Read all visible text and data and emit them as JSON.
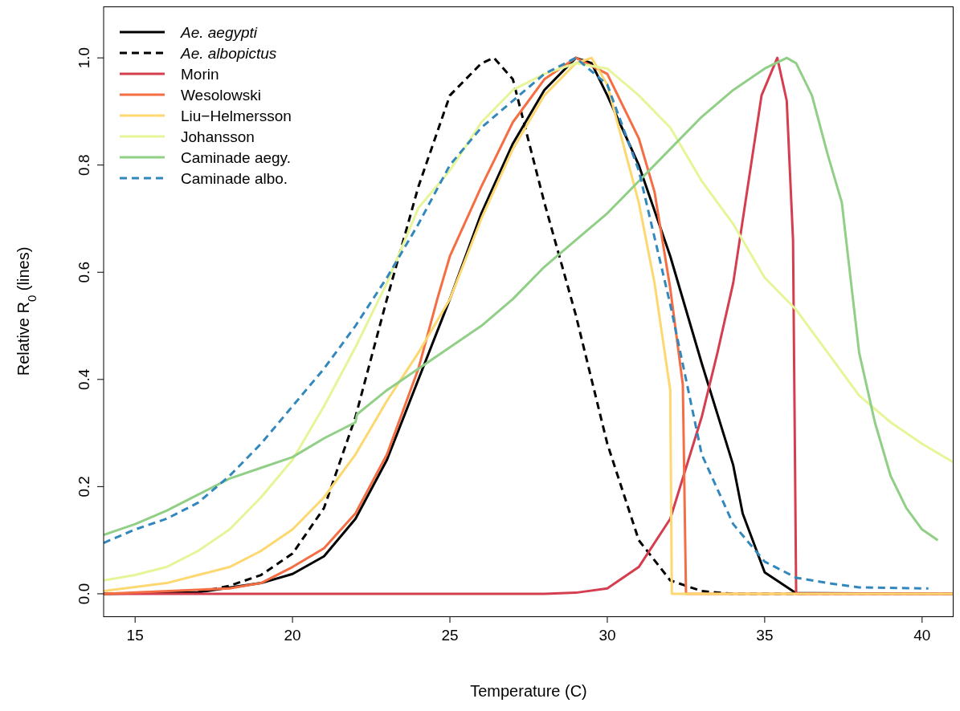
{
  "chart_data": {
    "type": "line",
    "xlabel": "Temperature (C)",
    "ylabel": "Relative R$_{0}$ (lines)",
    "xlim": [
      14,
      41
    ],
    "ylim": [
      -0.042,
      1.096
    ],
    "xticks": [
      15,
      20,
      25,
      30,
      35,
      40
    ],
    "yticks": [
      {
        "value": 0,
        "label": "0.0"
      },
      {
        "value": 0.2,
        "label": "0.2"
      },
      {
        "value": 0.4,
        "label": "0.4"
      },
      {
        "value": 0.6,
        "label": "0.6"
      },
      {
        "value": 0.8,
        "label": "0.8"
      },
      {
        "value": 1,
        "label": "1.0"
      }
    ],
    "grid": false,
    "legend": "top left",
    "series": [
      {
        "name": "Ae. aegypti",
        "color": "#000000",
        "line_style": "solid",
        "x": [
          14,
          17,
          19,
          20,
          21,
          22,
          23,
          24,
          25,
          26,
          27,
          28,
          29,
          29.5,
          30,
          31,
          32,
          33,
          34,
          34.3,
          35,
          36,
          41
        ],
        "values": [
          0,
          0.003,
          0.02,
          0.037,
          0.07,
          0.14,
          0.25,
          0.4,
          0.55,
          0.71,
          0.84,
          0.94,
          1,
          0.99,
          0.93,
          0.8,
          0.63,
          0.43,
          0.24,
          0.15,
          0.04,
          0.001,
          0
        ]
      },
      {
        "name": "Ae. albopictus",
        "color": "#000000",
        "line_style": "dashed",
        "x": [
          17,
          18,
          19,
          20,
          21,
          22,
          23,
          24,
          25,
          26,
          26.4,
          27,
          28,
          29,
          30,
          31,
          32,
          33,
          34,
          41
        ],
        "values": [
          0.003,
          0.015,
          0.035,
          0.075,
          0.16,
          0.33,
          0.55,
          0.76,
          0.93,
          0.99,
          1,
          0.96,
          0.73,
          0.52,
          0.28,
          0.1,
          0.025,
          0.005,
          0,
          0
        ]
      },
      {
        "name": "Morin",
        "color": "#d53e4f",
        "line_style": "solid",
        "x": [
          14,
          28,
          29,
          30,
          31,
          32,
          33,
          33.5,
          34,
          34.9,
          35.4,
          35.7,
          35.9,
          36,
          41
        ],
        "values": [
          0,
          0,
          0.002,
          0.01,
          0.05,
          0.14,
          0.33,
          0.45,
          0.58,
          0.93,
          1,
          0.92,
          0.66,
          0,
          0
        ]
      },
      {
        "name": "Wesolowski",
        "color": "#f46d43",
        "line_style": "solid",
        "x": [
          14,
          18,
          19,
          20,
          21,
          22,
          23,
          24,
          24.6,
          25,
          26,
          27,
          28,
          29,
          30,
          31,
          31.5,
          32,
          32.4,
          32.5,
          41
        ],
        "values": [
          0,
          0.01,
          0.02,
          0.05,
          0.085,
          0.15,
          0.26,
          0.42,
          0.55,
          0.63,
          0.76,
          0.88,
          0.96,
          1,
          0.97,
          0.85,
          0.75,
          0.57,
          0.39,
          0,
          0
        ]
      },
      {
        "name": "Liu−Helmersson",
        "color": "#fdd870",
        "line_style": "solid",
        "x": [
          14,
          16,
          18,
          19,
          20,
          21,
          22,
          23,
          24,
          25,
          26,
          27,
          28,
          29,
          29.5,
          30,
          31,
          31.5,
          32,
          32.05,
          41
        ],
        "values": [
          0.005,
          0.02,
          0.05,
          0.08,
          0.12,
          0.18,
          0.26,
          0.36,
          0.45,
          0.55,
          0.7,
          0.83,
          0.93,
          0.99,
          1,
          0.95,
          0.73,
          0.58,
          0.38,
          0,
          0
        ]
      },
      {
        "name": "Johansson",
        "color": "#e6f598",
        "line_style": "solid",
        "x": [
          14,
          15,
          16,
          17,
          18,
          19,
          20,
          21,
          22,
          23,
          24,
          25,
          26,
          27,
          28,
          29,
          30,
          31,
          32,
          33,
          34,
          35,
          36,
          37,
          38,
          39,
          40,
          41
        ],
        "values": [
          0.025,
          0.035,
          0.05,
          0.08,
          0.12,
          0.18,
          0.25,
          0.35,
          0.46,
          0.58,
          0.72,
          0.79,
          0.88,
          0.94,
          0.97,
          0.99,
          0.98,
          0.93,
          0.87,
          0.77,
          0.69,
          0.59,
          0.53,
          0.45,
          0.37,
          0.32,
          0.28,
          0.245
        ]
      },
      {
        "name": "Caminade aegy.",
        "color": "#91cf87",
        "line_style": "solid",
        "x": [
          14,
          15,
          16,
          17,
          18,
          19,
          20,
          21,
          22,
          22.05,
          23,
          24,
          25,
          26,
          27,
          28,
          29,
          30,
          31,
          32,
          33,
          34,
          35,
          35.7,
          36,
          36.5,
          37,
          37.45,
          38,
          38.5,
          39,
          39.5,
          40,
          40.5
        ],
        "values": [
          0.11,
          0.13,
          0.155,
          0.185,
          0.215,
          0.235,
          0.255,
          0.29,
          0.32,
          0.335,
          0.38,
          0.42,
          0.46,
          0.5,
          0.55,
          0.61,
          0.66,
          0.71,
          0.77,
          0.83,
          0.89,
          0.94,
          0.98,
          1,
          0.99,
          0.93,
          0.82,
          0.73,
          0.45,
          0.32,
          0.22,
          0.16,
          0.12,
          0.1
        ]
      },
      {
        "name": "Caminade albo.",
        "color": "#3288bd",
        "line_style": "dashed",
        "x": [
          14,
          15,
          16,
          17,
          18,
          19,
          20,
          21,
          22,
          23,
          24,
          25,
          26,
          27,
          28,
          29,
          30,
          31,
          32,
          33,
          34,
          35,
          36,
          37,
          38,
          40,
          40.2
        ],
        "values": [
          0.095,
          0.12,
          0.14,
          0.17,
          0.22,
          0.28,
          0.35,
          0.42,
          0.5,
          0.59,
          0.69,
          0.8,
          0.87,
          0.92,
          0.97,
          1,
          0.95,
          0.79,
          0.54,
          0.26,
          0.13,
          0.06,
          0.03,
          0.02,
          0.012,
          0.01,
          0.01
        ]
      }
    ]
  }
}
